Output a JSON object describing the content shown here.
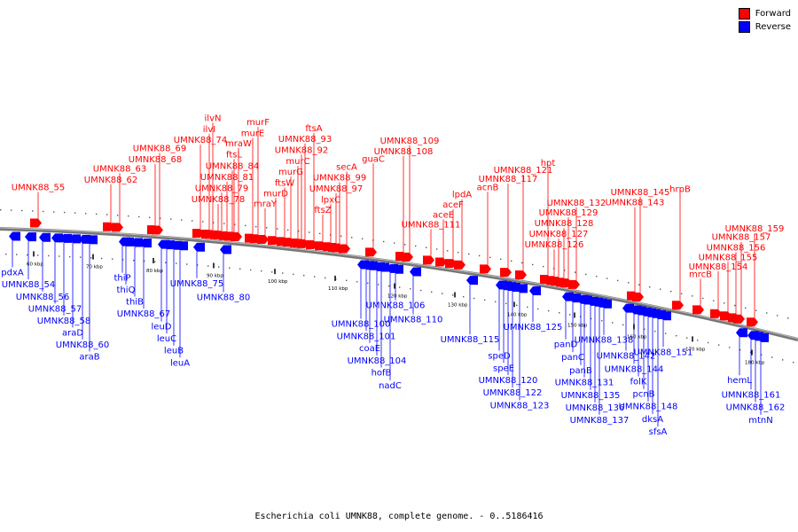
{
  "legend": [
    {
      "label": "Forward",
      "color": "#ff0000"
    },
    {
      "label": "Reverse",
      "color": "#0000ff"
    }
  ],
  "caption": "Escherichia coli UMNK88, complete genome. - 0..5186416",
  "ruler": {
    "ticks": [
      {
        "label": "60 kbp",
        "pos": 38
      },
      {
        "label": "70 kbp",
        "pos": 105
      },
      {
        "label": "80 kbp",
        "pos": 173
      },
      {
        "label": "90 kbp",
        "pos": 241
      },
      {
        "label": "100 kbp",
        "pos": 310
      },
      {
        "label": "110 kbp",
        "pos": 378
      },
      {
        "label": "120 kbp",
        "pos": 445
      },
      {
        "label": "130 kbp",
        "pos": 513
      },
      {
        "label": "140 kbp",
        "pos": 580
      },
      {
        "label": "150 kbp",
        "pos": 648
      },
      {
        "label": "160 kbp",
        "pos": 715
      },
      {
        "label": "170 kbp",
        "pos": 781
      },
      {
        "label": "180 kbp",
        "pos": 848
      }
    ]
  },
  "forward_genes": [
    {
      "name": "UMNK88_55",
      "anchor": 43,
      "label": "UMNK88_55"
    },
    {
      "name": "UMNK88_62",
      "anchor": 125,
      "label": "UMNK88_62"
    },
    {
      "name": "UMNK88_63",
      "anchor": 135,
      "label": "UMNK88_63"
    },
    {
      "name": "UMNK88_68",
      "anchor": 175,
      "label": "UMNK88_68"
    },
    {
      "name": "UMNK88_69",
      "anchor": 180,
      "label": "UMNK88_69"
    },
    {
      "name": "UMNK88_74",
      "anchor": 226,
      "label": "UMNK88_74"
    },
    {
      "name": "ilvI",
      "anchor": 236,
      "label": "ilvI"
    },
    {
      "name": "ilvN",
      "anchor": 240,
      "label": "ilvN"
    },
    {
      "name": "UMNK88_78",
      "anchor": 246,
      "label": "UMNK88_78"
    },
    {
      "name": "UMNK88_79",
      "anchor": 250,
      "label": "UMNK88_79"
    },
    {
      "name": "UMNK88_81",
      "anchor": 256,
      "label": "UMNK88_81"
    },
    {
      "name": "UMNK88_84",
      "anchor": 262,
      "label": "UMNK88_84"
    },
    {
      "name": "ftsL",
      "anchor": 264,
      "label": "ftsL"
    },
    {
      "name": "mraW",
      "anchor": 269,
      "label": "mraW"
    },
    {
      "name": "murE",
      "anchor": 285,
      "label": "murE"
    },
    {
      "name": "murF",
      "anchor": 291,
      "label": "murF"
    },
    {
      "name": "mraY",
      "anchor": 299,
      "label": "mraY"
    },
    {
      "name": "murD",
      "anchor": 311,
      "label": "murD"
    },
    {
      "name": "ftsW",
      "anchor": 321,
      "label": "ftsW"
    },
    {
      "name": "murG",
      "anchor": 328,
      "label": "murG"
    },
    {
      "name": "murC",
      "anchor": 336,
      "label": "murC"
    },
    {
      "name": "UMNK88_92",
      "anchor": 340,
      "label": "UMNK88_92"
    },
    {
      "name": "UMNK88_93",
      "anchor": 344,
      "label": "UMNK88_93"
    },
    {
      "name": "ftsA",
      "anchor": 354,
      "label": "ftsA"
    },
    {
      "name": "ftsZ",
      "anchor": 364,
      "label": "ftsZ"
    },
    {
      "name": "lpxC",
      "anchor": 373,
      "label": "lpxC"
    },
    {
      "name": "UMNK88_97",
      "anchor": 379,
      "label": "UMNK88_97"
    },
    {
      "name": "UMNK88_99",
      "anchor": 383,
      "label": "UMNK88_99"
    },
    {
      "name": "secA",
      "anchor": 391,
      "label": "secA"
    },
    {
      "name": "guaC",
      "anchor": 421,
      "label": "guaC"
    },
    {
      "name": "UMNK88_108",
      "anchor": 455,
      "label": "UMNK88_108"
    },
    {
      "name": "UMNK88_109",
      "anchor": 462,
      "label": "UMNK88_109"
    },
    {
      "name": "UMNK88_111",
      "anchor": 486,
      "label": "UMNK88_111"
    },
    {
      "name": "aceE",
      "anchor": 500,
      "label": "aceE"
    },
    {
      "name": "aceF",
      "anchor": 511,
      "label": "aceF"
    },
    {
      "name": "lpdA",
      "anchor": 521,
      "label": "lpdA"
    },
    {
      "name": "acnB",
      "anchor": 550,
      "label": "acnB"
    },
    {
      "name": "UMNK88_117",
      "anchor": 573,
      "label": "UMNK88_117"
    },
    {
      "name": "UMNK88_121",
      "anchor": 590,
      "label": "UMNK88_121"
    },
    {
      "name": "hpt",
      "anchor": 618,
      "label": "hpt"
    },
    {
      "name": "UMNK88_126",
      "anchor": 625,
      "label": "UMNK88_126"
    },
    {
      "name": "UMNK88_127",
      "anchor": 630,
      "label": "UMNK88_127"
    },
    {
      "name": "UMNK88_128",
      "anchor": 636,
      "label": "UMNK88_128"
    },
    {
      "name": "UMNK88_129",
      "anchor": 641,
      "label": "UMNK88_129"
    },
    {
      "name": "UMNK88_132",
      "anchor": 650,
      "label": "UMNK88_132"
    },
    {
      "name": "UMNK88_143",
      "anchor": 716,
      "label": "UMNK88_143"
    },
    {
      "name": "UMNK88_145",
      "anchor": 722,
      "label": "UMNK88_145"
    },
    {
      "name": "hrpB",
      "anchor": 767,
      "label": "hrpB"
    },
    {
      "name": "mrcB",
      "anchor": 790,
      "label": "mrcB"
    },
    {
      "name": "UMNK88_154",
      "anchor": 810,
      "label": "UMNK88_154"
    },
    {
      "name": "UMNK88_155",
      "anchor": 821,
      "label": "UMNK88_155"
    },
    {
      "name": "UMNK88_156",
      "anchor": 830,
      "label": "UMNK88_156"
    },
    {
      "name": "UMNK88_157",
      "anchor": 836,
      "label": "UMNK88_157"
    },
    {
      "name": "UMNK88_159",
      "anchor": 851,
      "label": "UMNK88_159"
    }
  ],
  "reverse_genes": [
    {
      "name": "pdxA",
      "anchor": 14,
      "label": "pdxA"
    },
    {
      "name": "UMNK88_54",
      "anchor": 32,
      "label": "UMNK88_54"
    },
    {
      "name": "UMNK88_56",
      "anchor": 48,
      "label": "UMNK88_56"
    },
    {
      "name": "UMNK88_57",
      "anchor": 62,
      "label": "UMNK88_57"
    },
    {
      "name": "UMNK88_58",
      "anchor": 72,
      "label": "UMNK88_58"
    },
    {
      "name": "araD",
      "anchor": 82,
      "label": "araD"
    },
    {
      "name": "UMNK88_60",
      "anchor": 93,
      "label": "UMNK88_60"
    },
    {
      "name": "araB",
      "anchor": 101,
      "label": "araB"
    },
    {
      "name": "thiP",
      "anchor": 138,
      "label": "thiP"
    },
    {
      "name": "thiQ",
      "anchor": 142,
      "label": "thiQ"
    },
    {
      "name": "thiB",
      "anchor": 152,
      "label": "thiB"
    },
    {
      "name": "UMNK88_67",
      "anchor": 162,
      "label": "UMNK88_67"
    },
    {
      "name": "leuD",
      "anchor": 182,
      "label": "leuD"
    },
    {
      "name": "leuC",
      "anchor": 188,
      "label": "leuC"
    },
    {
      "name": "leuB",
      "anchor": 196,
      "label": "leuB"
    },
    {
      "name": "leuA",
      "anchor": 203,
      "label": "leuA"
    },
    {
      "name": "UMNK88_75",
      "anchor": 222,
      "label": "UMNK88_75"
    },
    {
      "name": "UMNK88_80",
      "anchor": 252,
      "label": "UMNK88_80"
    },
    {
      "name": "UMNK88_100",
      "anchor": 407,
      "label": "UMNK88_100"
    },
    {
      "name": "UMNK88_101",
      "anchor": 413,
      "label": "UMNK88_101"
    },
    {
      "name": "coaE",
      "anchor": 417,
      "label": "coaE"
    },
    {
      "name": "UMNK88_104",
      "anchor": 425,
      "label": "UMNK88_104"
    },
    {
      "name": "hofB",
      "anchor": 430,
      "label": "hofB"
    },
    {
      "name": "nadC",
      "anchor": 440,
      "label": "nadC"
    },
    {
      "name": "UMNK88_106",
      "anchor": 446,
      "label": "UMNK88_106"
    },
    {
      "name": "UMNK88_110",
      "anchor": 466,
      "label": "UMNK88_110"
    },
    {
      "name": "UMNK88_115",
      "anchor": 530,
      "label": "UMNK88_115"
    },
    {
      "name": "speD",
      "anchor": 563,
      "label": "speD"
    },
    {
      "name": "speE",
      "anchor": 568,
      "label": "speE"
    },
    {
      "name": "UMNK88_120",
      "anchor": 573,
      "label": "UMNK88_120"
    },
    {
      "name": "UMNK88_122",
      "anchor": 578,
      "label": "UMNK88_122"
    },
    {
      "name": "UMNK88_123",
      "anchor": 586,
      "label": "UMNK88_123"
    },
    {
      "name": "UMNK88_125",
      "anchor": 601,
      "label": "UMNK88_125"
    },
    {
      "name": "panD",
      "anchor": 638,
      "label": "panD"
    },
    {
      "name": "panC",
      "anchor": 646,
      "label": "panC"
    },
    {
      "name": "panB",
      "anchor": 655,
      "label": "panB"
    },
    {
      "name": "UMNK88_131",
      "anchor": 659,
      "label": "UMNK88_131"
    },
    {
      "name": "UMNK88_135",
      "anchor": 666,
      "label": "UMNK88_135"
    },
    {
      "name": "UMNK88_136",
      "anchor": 671,
      "label": "UMNK88_136"
    },
    {
      "name": "UMNK88_137",
      "anchor": 676,
      "label": "UMNK88_137"
    },
    {
      "name": "UMNK88_138",
      "anchor": 681,
      "label": "UMNK88_138"
    },
    {
      "name": "UMNK88_142",
      "anchor": 706,
      "label": "UMNK88_142"
    },
    {
      "name": "UMNK88_144",
      "anchor": 715,
      "label": "UMNK88_144"
    },
    {
      "name": "folK",
      "anchor": 720,
      "label": "folK"
    },
    {
      "name": "pcnB",
      "anchor": 726,
      "label": "pcnB"
    },
    {
      "name": "UMNK88_148",
      "anchor": 731,
      "label": "UMNK88_148"
    },
    {
      "name": "dksA",
      "anchor": 736,
      "label": "dksA"
    },
    {
      "name": "sfsA",
      "anchor": 742,
      "label": "sfsA"
    },
    {
      "name": "UMNK88_151",
      "anchor": 748,
      "label": "UMNK88_151"
    },
    {
      "name": "hemL",
      "anchor": 834,
      "label": "hemL"
    },
    {
      "name": "UMNK88_161",
      "anchor": 847,
      "label": "UMNK88_161"
    },
    {
      "name": "UMNK88_162",
      "anchor": 852,
      "label": "UMNK88_162"
    },
    {
      "name": "mtnN",
      "anchor": 858,
      "label": "mtnN"
    }
  ]
}
